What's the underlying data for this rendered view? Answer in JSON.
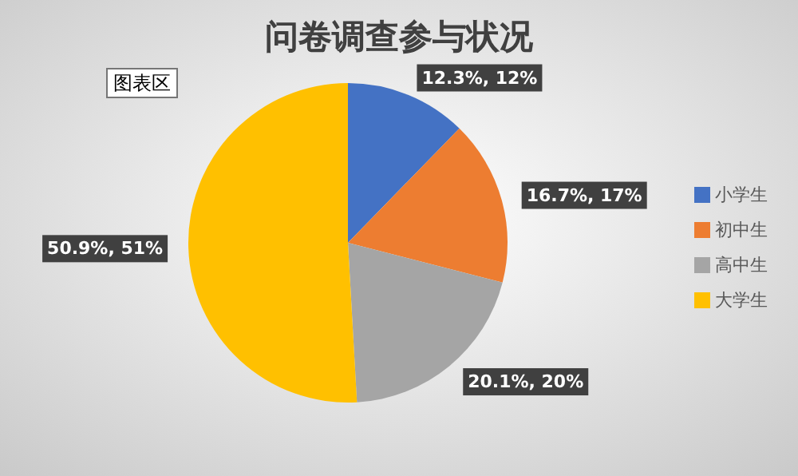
{
  "chart_data": {
    "type": "pie",
    "title": "问卷调查参与状况",
    "categories": [
      "小学生",
      "初中生",
      "高中生",
      "大学生"
    ],
    "values": [
      12.3,
      16.7,
      20.1,
      50.9
    ],
    "colors": [
      "#4472c4",
      "#ed7d31",
      "#a5a5a5",
      "#ffc000"
    ],
    "value_labels": [
      "12.3%, 12%",
      "16.7%, 17%",
      "20.1%, 20%",
      "50.9%, 51%"
    ],
    "annotations": [
      "图表区"
    ],
    "legend": "right"
  }
}
